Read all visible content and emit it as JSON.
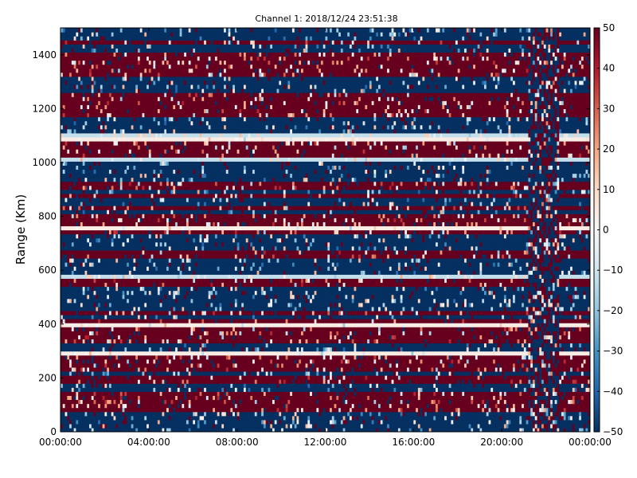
{
  "chart_data": {
    "type": "heatmap",
    "title": "Channel 1: 2018/12/24 23:51:38",
    "xlabel": "",
    "ylabel": "Range (Km)",
    "x_tick_labels": [
      "00:00:00",
      "04:00:00",
      "08:00:00",
      "12:00:00",
      "16:00:00",
      "20:00:00",
      "00:00:00"
    ],
    "x_tick_hours": [
      0,
      4,
      8,
      12,
      16,
      20,
      24
    ],
    "xlim_hours": [
      0,
      24
    ],
    "y_ticks": [
      0,
      200,
      400,
      600,
      800,
      1000,
      1200,
      1400
    ],
    "ylim": [
      0,
      1500
    ],
    "colorbar": {
      "colormap": "RdBu_r",
      "range": [
        -50,
        50
      ],
      "ticks": [
        -50,
        -40,
        -30,
        -20,
        -10,
        0,
        10,
        20,
        30,
        40,
        50
      ],
      "low_color": "#053061",
      "mid_color": "#f7f7f7",
      "high_color": "#67001f"
    },
    "range_gate_km": 15,
    "time_step_hours": 0.1,
    "pattern_notes": "Horizontal banding of saturated positive (red) and negative (blue) values across range; values near zero (white) appear as thin bright streaks, prominently near 1090, 575, 390 and 290 Km; noisy vertical disturbance between about 21:15 and 22:30."
  }
}
